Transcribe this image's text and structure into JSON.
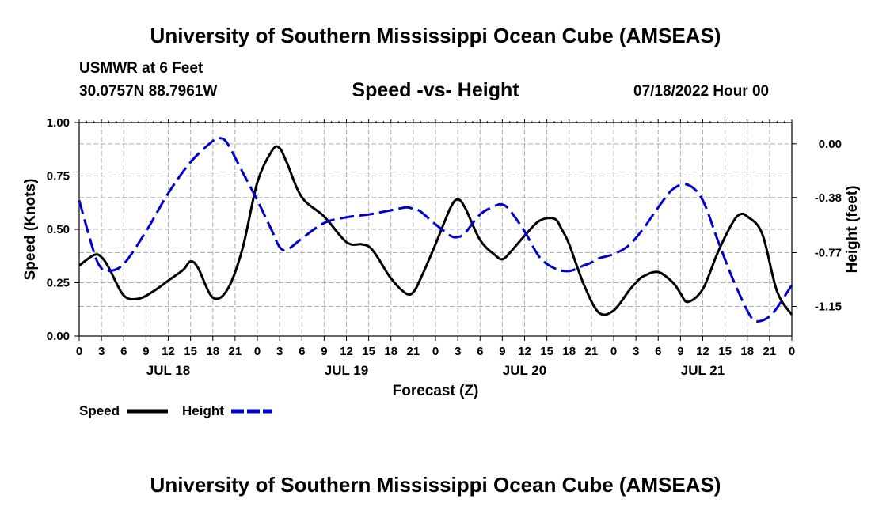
{
  "header": {
    "title_top": "University of Southern Mississippi Ocean Cube (AMSEAS)",
    "station": "USMWR at 6 Feet",
    "coords": "30.0757N  88.7961W",
    "subtitle": "Speed -vs- Height",
    "datetime": "07/18/2022 Hour 00",
    "title_bottom": "University of Southern Mississippi Ocean Cube (AMSEAS)"
  },
  "chart_data": {
    "type": "line",
    "xlabel": "Forecast (Z)",
    "ylabel": "Speed (Knots)",
    "y2label": "Height (feet)",
    "xlim": [
      0,
      96
    ],
    "ylim": [
      0,
      1
    ],
    "y2lim": [
      -1.36,
      0.15
    ],
    "x_ticks": [
      0,
      3,
      6,
      9,
      12,
      15,
      18,
      21,
      24,
      27,
      30,
      33,
      36,
      39,
      42,
      45,
      48,
      51,
      54,
      57,
      60,
      63,
      66,
      69,
      72,
      75,
      78,
      81,
      84,
      87,
      90,
      93,
      96
    ],
    "x_tick_labels": [
      "0",
      "3",
      "6",
      "9",
      "12",
      "15",
      "18",
      "21",
      "0",
      "3",
      "6",
      "9",
      "12",
      "15",
      "18",
      "21",
      "0",
      "3",
      "6",
      "9",
      "12",
      "15",
      "18",
      "21",
      "0",
      "3",
      "6",
      "9",
      "12",
      "15",
      "18",
      "21",
      "0"
    ],
    "y_ticks": [
      0,
      0.25,
      0.5,
      0.75,
      1.0
    ],
    "y_tick_labels": [
      "0.00",
      "0.25",
      "0.50",
      "0.75",
      "1.00"
    ],
    "y2_ticks": [
      0.0,
      -0.38,
      -0.77,
      -1.15
    ],
    "y2_tick_labels": [
      "0.00",
      "-0.38",
      "-0.77",
      "-1.15"
    ],
    "day_labels": [
      {
        "x": 12,
        "label": "JUL 18"
      },
      {
        "x": 36,
        "label": "JUL 19"
      },
      {
        "x": 60,
        "label": "JUL 20"
      },
      {
        "x": 84,
        "label": "JUL 21"
      }
    ],
    "series": [
      {
        "name": "Speed",
        "color": "#000000",
        "axis": "left",
        "x": [
          0,
          2,
          3,
          4,
          6,
          8,
          10,
          12,
          14,
          15,
          16,
          18,
          20,
          22,
          24,
          26,
          27,
          28,
          30,
          33,
          36,
          38,
          39,
          40,
          42,
          44,
          45,
          46,
          48,
          50,
          51,
          52,
          54,
          56,
          57,
          58,
          60,
          62,
          64,
          65,
          66,
          68,
          70,
          72,
          74,
          75,
          76,
          78,
          80,
          81,
          82,
          84,
          86,
          88,
          89,
          90,
          92,
          94,
          96
        ],
        "values": [
          0.33,
          0.38,
          0.37,
          0.32,
          0.19,
          0.175,
          0.21,
          0.26,
          0.31,
          0.35,
          0.32,
          0.18,
          0.22,
          0.41,
          0.72,
          0.87,
          0.88,
          0.81,
          0.65,
          0.56,
          0.44,
          0.43,
          0.42,
          0.38,
          0.27,
          0.2,
          0.205,
          0.27,
          0.43,
          0.6,
          0.64,
          0.6,
          0.45,
          0.38,
          0.36,
          0.39,
          0.47,
          0.54,
          0.55,
          0.5,
          0.43,
          0.24,
          0.11,
          0.12,
          0.21,
          0.25,
          0.28,
          0.3,
          0.25,
          0.2,
          0.16,
          0.22,
          0.39,
          0.53,
          0.57,
          0.56,
          0.48,
          0.21,
          0.1
        ]
      },
      {
        "name": "Height",
        "color": "#0000cc",
        "axis": "right",
        "x": [
          0,
          2,
          3,
          4,
          6,
          9,
          12,
          15,
          18,
          19,
          20,
          22,
          24,
          26,
          27,
          28,
          30,
          33,
          36,
          39,
          42,
          44,
          45,
          46,
          48,
          50,
          51,
          52,
          54,
          56,
          57,
          58,
          60,
          62,
          64,
          66,
          68,
          69,
          70,
          72,
          74,
          76,
          78,
          80,
          82,
          84,
          86,
          88,
          90,
          91,
          92,
          93,
          94,
          96
        ],
        "values": [
          -0.4,
          -0.77,
          -0.88,
          -0.9,
          -0.85,
          -0.62,
          -0.35,
          -0.13,
          0.02,
          0.04,
          0.0,
          -0.2,
          -0.4,
          -0.62,
          -0.73,
          -0.75,
          -0.67,
          -0.56,
          -0.52,
          -0.5,
          -0.47,
          -0.45,
          -0.46,
          -0.48,
          -0.57,
          -0.65,
          -0.66,
          -0.63,
          -0.5,
          -0.44,
          -0.43,
          -0.47,
          -0.62,
          -0.8,
          -0.88,
          -0.9,
          -0.86,
          -0.84,
          -0.81,
          -0.78,
          -0.72,
          -0.6,
          -0.45,
          -0.32,
          -0.29,
          -0.4,
          -0.68,
          -0.95,
          -1.18,
          -1.25,
          -1.25,
          -1.22,
          -1.16,
          -1.0
        ]
      }
    ],
    "legend": [
      {
        "label": "Speed",
        "style": "solid",
        "color": "#000000"
      },
      {
        "label": "Height",
        "style": "dashed",
        "color": "#0000cc"
      }
    ],
    "grid": true,
    "legend_position": "bottom-left"
  }
}
